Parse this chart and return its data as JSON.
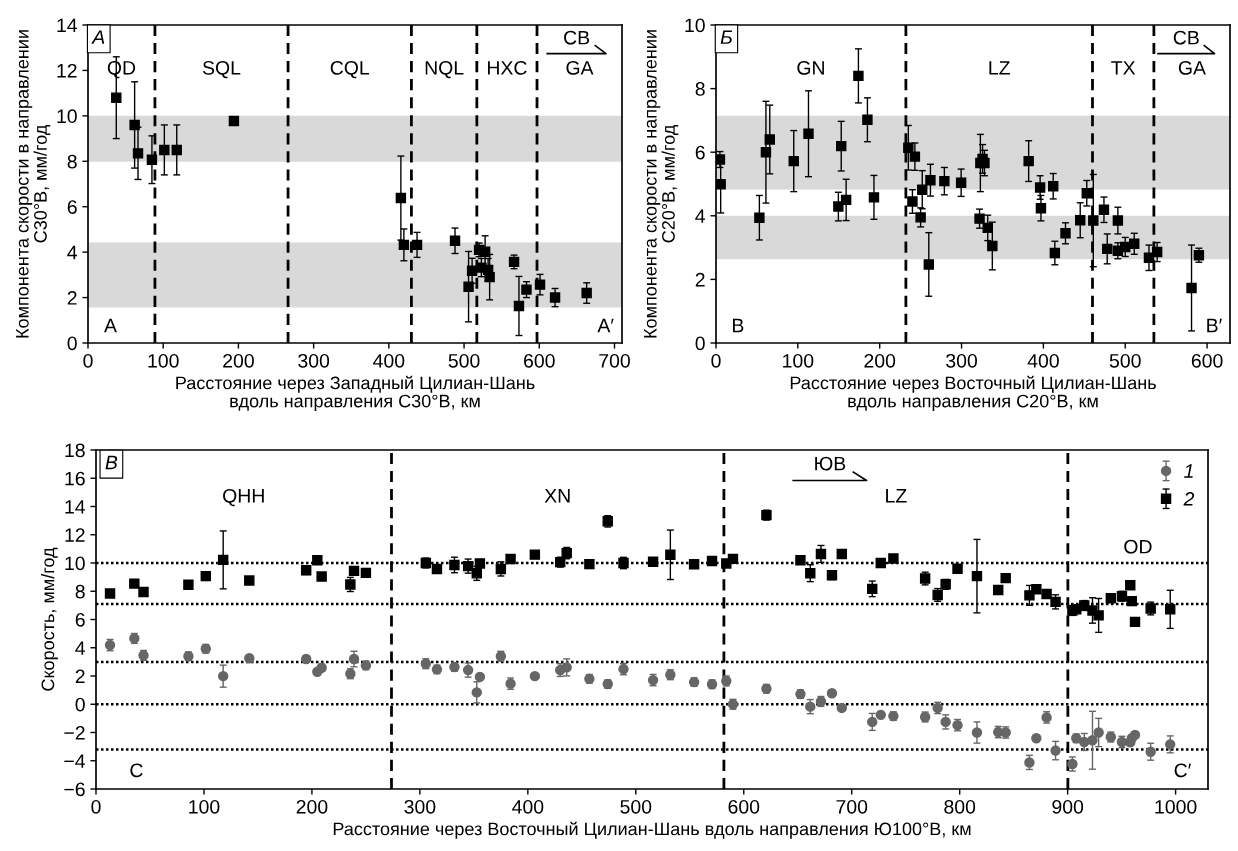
{
  "chart_data": [
    {
      "type": "scatter",
      "xlabel": "Расстояние через Западный Цилиан-Шань\nвдоль направления С30°В, км",
      "ylabel": "Компонента скорости в направлении\nС30°В, мм/год",
      "marker": "square",
      "xlim": [
        0,
        710
      ],
      "xticks": [
        0,
        100,
        200,
        300,
        400,
        500,
        600,
        700
      ],
      "ylim": [
        0,
        14
      ],
      "yticks": [
        0,
        2,
        4,
        6,
        8,
        10,
        12,
        14
      ],
      "x": [
        37.6,
        62,
        66.5,
        85,
        101.5,
        118,
        194,
        416,
        420,
        437.5,
        488,
        506,
        510.7,
        520,
        523,
        528,
        532,
        534,
        566.5,
        573,
        583,
        601,
        621,
        663
      ],
      "series": [
        {
          "color": "#000000",
          "values": [
            10.8,
            9.6,
            8.35,
            8.07,
            8.5,
            8.5,
            9.77,
            6.38,
            4.32,
            4.32,
            4.5,
            2.48,
            3.18,
            4.1,
            3.32,
            4.02,
            3.22,
            2.9,
            3.57,
            1.63,
            2.35,
            2.57,
            2.0,
            2.2
          ],
          "errors": [
            1.8,
            1.9,
            1.15,
            1.05,
            1.1,
            1.1,
            null,
            1.85,
            0.7,
            0.55,
            0.56,
            1.55,
            0.55,
            0.3,
            0.4,
            0.7,
            0.5,
            1.0,
            0.3,
            1.3,
            0.35,
            0.45,
            0.4,
            0.45
          ]
        }
      ],
      "bands": [
        {
          "axis": "y",
          "from": 7.98,
          "to": 10.0,
          "color": "#d9d9d9"
        },
        {
          "axis": "y",
          "from": 1.56,
          "to": 4.43,
          "color": "#d9d9d9"
        }
      ],
      "ref_lines": [
        {
          "axis": "x",
          "value": 89,
          "color": "#000000",
          "line_style": "dashed"
        },
        {
          "axis": "x",
          "value": 266,
          "color": "#000000",
          "line_style": "dashed"
        },
        {
          "axis": "x",
          "value": 430,
          "color": "#000000",
          "line_style": "dashed"
        },
        {
          "axis": "x",
          "value": 517,
          "color": "#000000",
          "line_style": "dashed"
        },
        {
          "axis": "x",
          "value": 597,
          "color": "#000000",
          "line_style": "dashed"
        }
      ],
      "annotations": [
        "А",
        "СВ",
        "A",
        "A′",
        "QD",
        "SQL",
        "CQL",
        "NQL",
        "HXC",
        "GA"
      ]
    },
    {
      "type": "scatter",
      "xlabel": "Расстояние через Восточный Цилиан-Шань\nвдоль направления С20°В, км",
      "ylabel": "Компонента скорости в направлении\nС20°В, мм/год",
      "marker": "square",
      "xlim": [
        0,
        628
      ],
      "xticks": [
        0,
        100,
        200,
        300,
        400,
        500,
        600
      ],
      "ylim": [
        0,
        10
      ],
      "yticks": [
        0,
        2,
        4,
        6,
        8,
        10
      ],
      "x": [
        4.8,
        5.7,
        53,
        61,
        65.7,
        95,
        113,
        149.5,
        153,
        159,
        174,
        185,
        193,
        235,
        240,
        243,
        250,
        252,
        260,
        262,
        279,
        299.5,
        322,
        323,
        325.7,
        328,
        332,
        337.6,
        382,
        396,
        397,
        412,
        414,
        427,
        445,
        453,
        461,
        474,
        478,
        491,
        491,
        500,
        511,
        529,
        539,
        581,
        590
      ],
      "series": [
        {
          "color": "#000000",
          "values": [
            5.77,
            4.99,
            3.94,
            6.0,
            6.4,
            5.72,
            6.58,
            4.29,
            6.19,
            4.5,
            8.4,
            7.02,
            4.58,
            6.14,
            4.45,
            5.86,
            3.95,
            4.82,
            2.47,
            5.12,
            5.09,
            5.04,
            3.91,
            5.66,
            5.79,
            5.66,
            3.62,
            3.05,
            5.72,
            4.89,
            4.24,
            4.93,
            2.83,
            3.45,
            3.86,
            4.71,
            3.85,
            4.19,
            2.96,
            3.85,
            2.9,
            3.02,
            3.12,
            2.68,
            2.86,
            1.73,
            2.76
          ],
          "errors": [
            0.25,
            0.9,
            0.7,
            1.6,
            1.08,
            0.96,
            1.35,
            0.45,
            0.78,
            0.65,
            0.85,
            0.69,
            0.69,
            0.7,
            0.37,
            0.43,
            0.3,
            0.6,
            1.0,
            0.5,
            0.43,
            0.43,
            0.3,
            0.9,
            0.45,
            0.4,
            0.4,
            0.75,
            0.64,
            0.37,
            0.4,
            0.4,
            0.37,
            0.33,
            0.55,
            0.4,
            1.45,
            0.4,
            0.47,
            0.42,
            0.25,
            0.3,
            0.33,
            0.4,
            0.3,
            1.35,
            0.22
          ]
        }
      ],
      "bands": [
        {
          "axis": "y",
          "from": 4.83,
          "to": 7.15,
          "color": "#d9d9d9"
        },
        {
          "axis": "y",
          "from": 2.63,
          "to": 4.0,
          "color": "#d9d9d9"
        }
      ],
      "ref_lines": [
        {
          "axis": "x",
          "value": 232,
          "color": "#000000",
          "line_style": "dashed"
        },
        {
          "axis": "x",
          "value": 460,
          "color": "#000000",
          "line_style": "dashed"
        },
        {
          "axis": "x",
          "value": 535,
          "color": "#000000",
          "line_style": "dashed"
        }
      ],
      "annotations": [
        "Б",
        "СВ",
        "B",
        "B′",
        "GN",
        "LZ",
        "TX",
        "GA"
      ]
    },
    {
      "type": "scatter",
      "xlabel": "Расстояние через Восточный Цилиан-Шань вдоль направления Ю100°В, км",
      "ylabel": "Скорость, мм/год",
      "legend": "top right",
      "xlim": [
        0,
        1030
      ],
      "xticks": [
        0,
        100,
        200,
        300,
        400,
        500,
        600,
        700,
        800,
        900,
        1000
      ],
      "ylim": [
        -6,
        18
      ],
      "yticks": [
        {
          "value": -6,
          "label": "−6"
        },
        {
          "value": -4,
          "label": "−4"
        },
        {
          "value": -2,
          "label": "−2"
        },
        0,
        2,
        4,
        6,
        8,
        10,
        12,
        14,
        16,
        18
      ],
      "x": [
        13,
        35.5,
        44,
        85.6,
        101.7,
        117.8,
        142,
        194.7,
        205,
        209,
        235.6,
        239,
        250,
        305.5,
        315.8,
        332,
        344.7,
        352.7,
        355.6,
        375,
        384,
        406.5,
        430,
        436,
        457,
        474,
        488.6,
        516,
        532,
        554,
        570.6,
        583.8,
        590,
        621,
        652.5,
        661.6,
        671.5,
        681.7,
        690.8,
        719,
        726.9,
        738.6,
        768,
        779.6,
        787,
        798,
        816,
        835.7,
        842.6,
        864.6,
        871,
        880.5,
        888.8,
        904.4,
        908,
        915.4,
        923,
        928.7,
        940,
        950.3,
        958,
        959.4,
        962.4,
        976.9,
        995
      ],
      "series": [
        {
          "name": "1",
          "color": "#666666",
          "marker": "circle",
          "values": [
            4.19,
            4.66,
            3.46,
            3.4,
            3.93,
            1.99,
            3.26,
            3.2,
            2.3,
            2.58,
            2.16,
            3.2,
            2.75,
            2.87,
            2.47,
            2.64,
            2.42,
            0.84,
            1.94,
            3.4,
            1.46,
            1.99,
            2.42,
            2.61,
            1.8,
            1.43,
            2.49,
            1.71,
            2.09,
            1.57,
            1.42,
            1.65,
            0.0,
            1.1,
            0.72,
            -0.17,
            0.2,
            0.78,
            -0.26,
            -1.25,
            -0.75,
            -0.84,
            -0.9,
            -0.26,
            -1.25,
            -1.48,
            -2.0,
            -1.97,
            -2.0,
            -4.12,
            -2.41,
            -0.93,
            -3.28,
            -4.23,
            -2.41,
            -2.67,
            -2.55,
            -2.0,
            -2.32,
            -2.67,
            -2.7,
            -2.41,
            -2.17,
            -3.36,
            -2.84
          ],
          "errors": [
            0.4,
            0.35,
            0.35,
            0.3,
            0.3,
            0.78,
            0.15,
            0.2,
            0.1,
            0.25,
            0.35,
            0.55,
            0.3,
            0.35,
            0.3,
            0.3,
            0.5,
            0.75,
            0.15,
            0.35,
            0.4,
            0.1,
            0.45,
            0.6,
            0.3,
            0.3,
            0.4,
            0.4,
            0.35,
            0.3,
            0.3,
            0.35,
            0.35,
            0.3,
            0.3,
            0.5,
            0.35,
            0.15,
            0.2,
            0.6,
            0.1,
            0.3,
            0.35,
            0.4,
            0.5,
            0.4,
            0.75,
            0.4,
            0.4,
            0.5,
            0.1,
            0.4,
            0.65,
            0.5,
            0.3,
            0.6,
            2.05,
            1.0,
            0.35,
            0.4,
            0.2,
            0.2,
            0.2,
            0.6,
            0.6
          ]
        },
        {
          "name": "2",
          "color": "#000000",
          "marker": "square",
          "values": [
            7.84,
            8.54,
            7.95,
            8.46,
            9.07,
            10.22,
            8.76,
            9.49,
            10.2,
            9.04,
            8.48,
            9.44,
            9.3,
            10.0,
            9.58,
            9.86,
            9.78,
            9.27,
            9.97,
            9.58,
            10.28,
            10.59,
            10.06,
            10.7,
            9.92,
            12.95,
            10.0,
            10.09,
            10.58,
            9.91,
            10.14,
            9.97,
            10.29,
            13.39,
            10.2,
            9.28,
            10.64,
            9.13,
            10.64,
            8.17,
            10.0,
            10.32,
            8.9,
            7.74,
            8.49,
            9.59,
            9.07,
            8.09,
            8.93,
            7.71,
            8.14,
            7.8,
            7.25,
            6.64,
            6.72,
            6.99,
            6.64,
            6.29,
            7.51,
            7.65,
            8.43,
            7.3,
            5.83,
            6.78,
            6.72
          ],
          "errors": [
            0.15,
            0.25,
            0.2,
            0.2,
            0.3,
            2.05,
            0.15,
            0.3,
            0.15,
            0.25,
            0.5,
            0.3,
            0.3,
            0.35,
            0.3,
            0.55,
            0.5,
            0.5,
            0.2,
            0.5,
            0.15,
            0.15,
            0.35,
            0.4,
            0.3,
            0.4,
            0.4,
            0.25,
            1.75,
            0.2,
            0.15,
            0.2,
            0.15,
            0.35,
            0.25,
            0.6,
            0.6,
            0.3,
            0.1,
            0.55,
            0.1,
            0.2,
            0.45,
            0.45,
            0.35,
            0.15,
            2.6,
            0.3,
            0.2,
            0.7,
            0.15,
            0.3,
            0.5,
            0.35,
            0.2,
            0.35,
            0.9,
            1.2,
            0.3,
            0.35,
            0.15,
            0.3,
            0.1,
            0.45,
            1.35
          ]
        }
      ],
      "ref_lines": [
        {
          "axis": "y",
          "value": 10,
          "color": "#000000",
          "line_style": "dotted"
        },
        {
          "axis": "y",
          "value": 7.1,
          "color": "#000000",
          "line_style": "dotted"
        },
        {
          "axis": "y",
          "value": 3,
          "color": "#000000",
          "line_style": "dotted"
        },
        {
          "axis": "y",
          "value": 0,
          "color": "#000000",
          "line_style": "dotted"
        },
        {
          "axis": "y",
          "value": -3.2,
          "color": "#000000",
          "line_style": "dotted"
        },
        {
          "axis": "x",
          "value": 273.7,
          "color": "#000000",
          "line_style": "dashed"
        },
        {
          "axis": "x",
          "value": 581.6,
          "color": "#000000",
          "line_style": "dashed"
        },
        {
          "axis": "x",
          "value": 900.2,
          "color": "#000000",
          "line_style": "dashed"
        }
      ],
      "annotations": [
        "В",
        "ЮВ",
        "C",
        "C′",
        "QHH",
        "XN",
        "LZ",
        "OD"
      ]
    }
  ]
}
